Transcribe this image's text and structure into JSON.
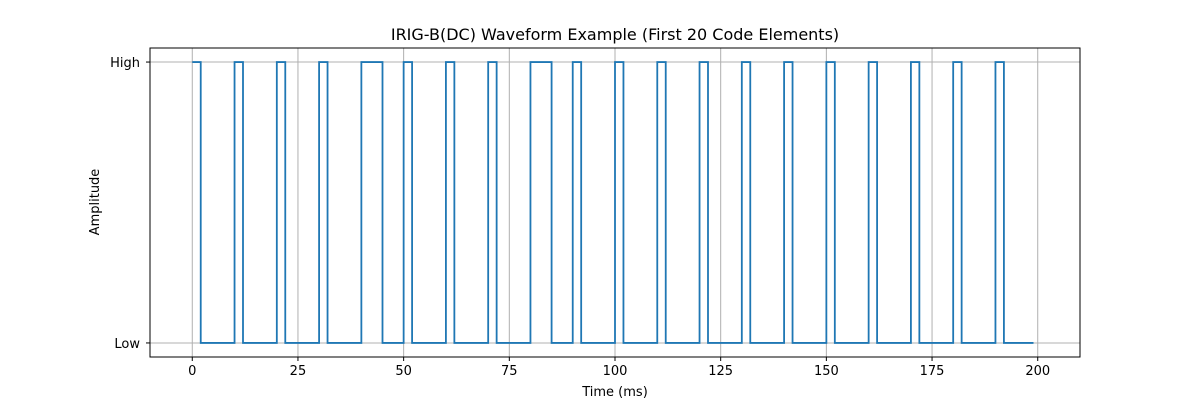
{
  "chart_data": {
    "type": "line",
    "title": "IRIG-B(DC) Waveform Example (First 20 Code Elements)",
    "xlabel": "Time (ms)",
    "ylabel": "Amplitude",
    "xlim": [
      -10,
      210
    ],
    "ylim": [
      -0.05,
      1.05
    ],
    "xticks": [
      0,
      25,
      50,
      75,
      100,
      125,
      150,
      175,
      200
    ],
    "xtick_labels": [
      "0",
      "25",
      "50",
      "75",
      "100",
      "125",
      "150",
      "175",
      "200"
    ],
    "yticks": [
      0,
      1
    ],
    "ytick_labels": [
      "Low",
      "High"
    ],
    "grid": true,
    "line_color": "#1f77b4",
    "grid_color": "#b0b0b0",
    "series": [
      {
        "step": "post",
        "x": [
          0,
          2,
          10,
          12,
          20,
          22,
          30,
          32,
          40,
          45,
          50,
          52,
          60,
          62,
          70,
          72,
          80,
          85,
          90,
          92,
          100,
          102,
          110,
          112,
          120,
          122,
          130,
          132,
          140,
          142,
          150,
          152,
          160,
          162,
          170,
          172,
          180,
          182,
          190,
          192,
          199
        ],
        "y": [
          1,
          0,
          1,
          0,
          1,
          0,
          1,
          0,
          1,
          0,
          1,
          0,
          1,
          0,
          1,
          0,
          1,
          0,
          1,
          0,
          1,
          0,
          1,
          0,
          1,
          0,
          1,
          0,
          1,
          0,
          1,
          0,
          1,
          0,
          1,
          0,
          1,
          0,
          1,
          0,
          0
        ]
      }
    ]
  }
}
